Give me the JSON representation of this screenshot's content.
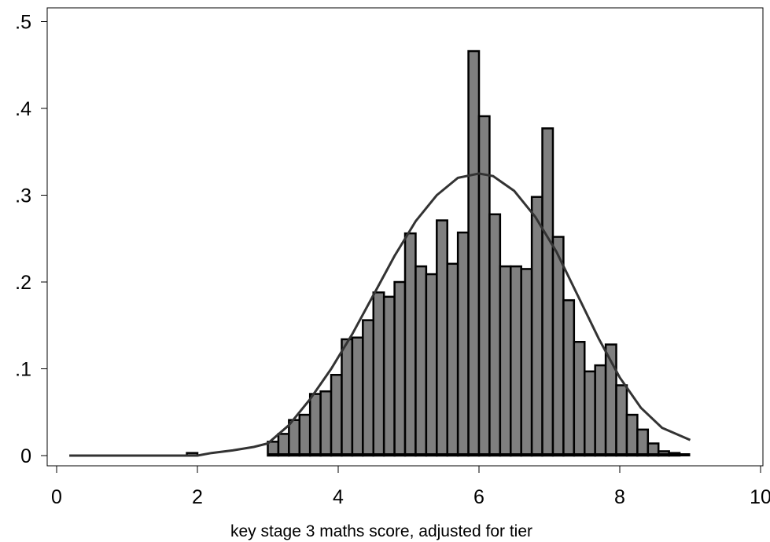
{
  "chart_data": {
    "type": "bar",
    "subtype": "histogram-with-density-curve",
    "xlabel": "key stage 3 maths score, adjusted for tier",
    "ylabel": "",
    "title": "",
    "xlim": [
      0,
      10
    ],
    "ylim": [
      0,
      0.5
    ],
    "x_ticks": [
      0,
      2,
      4,
      6,
      8,
      10
    ],
    "x_tick_labels": [
      "0",
      "2",
      "4",
      "6",
      "8",
      "10"
    ],
    "y_ticks": [
      0,
      0.1,
      0.2,
      0.3,
      0.4,
      0.5
    ],
    "y_tick_labels": [
      "0",
      ".1",
      ".2",
      ".3",
      ".4",
      ".5"
    ],
    "grid": false,
    "legend": "none",
    "bar_color": "#7f7f7f",
    "bar_edge_color": "#000000",
    "curve_color": "#333333",
    "bin_width": 0.15,
    "bins": [
      {
        "x": 1.85,
        "value": 0.003
      },
      {
        "x": 3.0,
        "value": 0.016
      },
      {
        "x": 3.15,
        "value": 0.025
      },
      {
        "x": 3.3,
        "value": 0.041
      },
      {
        "x": 3.45,
        "value": 0.047
      },
      {
        "x": 3.6,
        "value": 0.071
      },
      {
        "x": 3.75,
        "value": 0.074
      },
      {
        "x": 3.9,
        "value": 0.093
      },
      {
        "x": 4.05,
        "value": 0.134
      },
      {
        "x": 4.2,
        "value": 0.136
      },
      {
        "x": 4.35,
        "value": 0.156
      },
      {
        "x": 4.5,
        "value": 0.188
      },
      {
        "x": 4.65,
        "value": 0.183
      },
      {
        "x": 4.8,
        "value": 0.2
      },
      {
        "x": 4.95,
        "value": 0.256
      },
      {
        "x": 5.1,
        "value": 0.218
      },
      {
        "x": 5.25,
        "value": 0.209
      },
      {
        "x": 5.4,
        "value": 0.271
      },
      {
        "x": 5.55,
        "value": 0.221
      },
      {
        "x": 5.7,
        "value": 0.257
      },
      {
        "x": 5.85,
        "value": 0.466
      },
      {
        "x": 6.0,
        "value": 0.391
      },
      {
        "x": 6.15,
        "value": 0.278
      },
      {
        "x": 6.3,
        "value": 0.218
      },
      {
        "x": 6.45,
        "value": 0.218
      },
      {
        "x": 6.6,
        "value": 0.215
      },
      {
        "x": 6.75,
        "value": 0.298
      },
      {
        "x": 6.9,
        "value": 0.377
      },
      {
        "x": 7.05,
        "value": 0.252
      },
      {
        "x": 7.2,
        "value": 0.179
      },
      {
        "x": 7.35,
        "value": 0.131
      },
      {
        "x": 7.5,
        "value": 0.097
      },
      {
        "x": 7.65,
        "value": 0.104
      },
      {
        "x": 7.8,
        "value": 0.128
      },
      {
        "x": 7.95,
        "value": 0.081
      },
      {
        "x": 8.1,
        "value": 0.047
      },
      {
        "x": 8.25,
        "value": 0.03
      },
      {
        "x": 8.4,
        "value": 0.014
      },
      {
        "x": 8.55,
        "value": 0.005
      },
      {
        "x": 8.7,
        "value": 0.003
      }
    ],
    "baseline_strip": {
      "from": 3.0,
      "to": 9.0
    },
    "density_curve": {
      "x": [
        0.18,
        1.0,
        1.5,
        2.0,
        2.2,
        2.5,
        2.8,
        3.0,
        3.3,
        3.6,
        3.9,
        4.2,
        4.5,
        4.8,
        5.1,
        5.4,
        5.7,
        6.0,
        6.2,
        6.5,
        6.8,
        7.1,
        7.4,
        7.7,
        8.0,
        8.3,
        8.6,
        9.0
      ],
      "y": [
        0.0,
        0.0,
        0.0,
        0.0,
        0.003,
        0.006,
        0.01,
        0.014,
        0.035,
        0.065,
        0.1,
        0.14,
        0.185,
        0.23,
        0.27,
        0.3,
        0.32,
        0.325,
        0.322,
        0.305,
        0.275,
        0.235,
        0.185,
        0.135,
        0.09,
        0.055,
        0.032,
        0.018
      ]
    }
  }
}
